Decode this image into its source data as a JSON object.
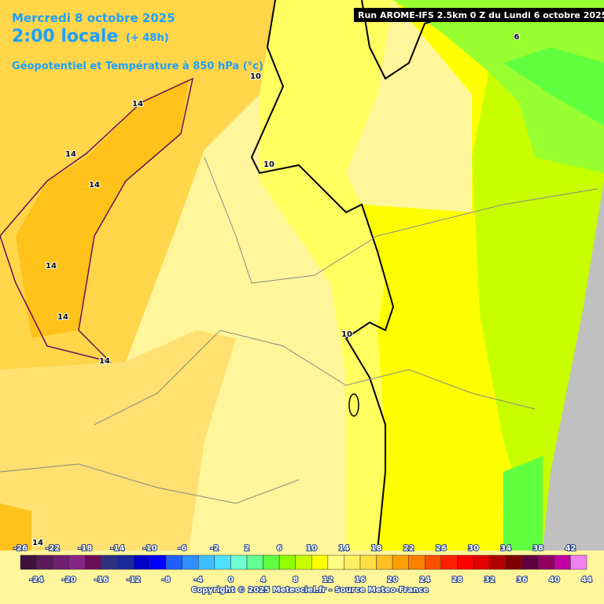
{
  "header": {
    "date": "Mercredi 8 octobre 2025",
    "time": "2:00 locale",
    "lead": "(+ 48h)",
    "parameter": "Géopotentiel et Température à 850 hPa (°c)",
    "run": "Run AROME-IFS 2.5km 0 Z du Lundi 6 octobre 2025"
  },
  "map": {
    "contour_labels": [
      "14",
      "14",
      "14",
      "14",
      "14",
      "14",
      "14",
      "10",
      "10",
      "10",
      "6"
    ]
  },
  "legend": {
    "top_labels": [
      -26,
      -22,
      -18,
      -14,
      -10,
      -6,
      -2,
      2,
      6,
      10,
      14,
      18,
      22,
      26,
      30,
      34,
      38,
      42
    ],
    "bottom_labels": [
      -24,
      -20,
      -16,
      -12,
      -8,
      -4,
      0,
      4,
      8,
      12,
      16,
      20,
      24,
      28,
      32,
      36,
      40,
      44
    ],
    "colors": [
      "#40103f",
      "#5a1a5a",
      "#701f70",
      "#852585",
      "#6a0f55",
      "#303080",
      "#1a2a9a",
      "#0000c8",
      "#0000ff",
      "#2060ff",
      "#2f8fff",
      "#3fbfff",
      "#50e0ff",
      "#70ffd0",
      "#60ff90",
      "#60ff40",
      "#90ff00",
      "#c8ff00",
      "#ffff00",
      "#ffff80",
      "#fff060",
      "#ffe040",
      "#ffc020",
      "#ff9f00",
      "#ff8000",
      "#ff5000",
      "#ff2000",
      "#ff0000",
      "#e00000",
      "#b00000",
      "#800000",
      "#600040",
      "#900060",
      "#c000a0",
      "#f080f0"
    ]
  },
  "footer": {
    "copyright": "Copyright © 2025 Meteociel.fr - Source Meteo-France"
  }
}
